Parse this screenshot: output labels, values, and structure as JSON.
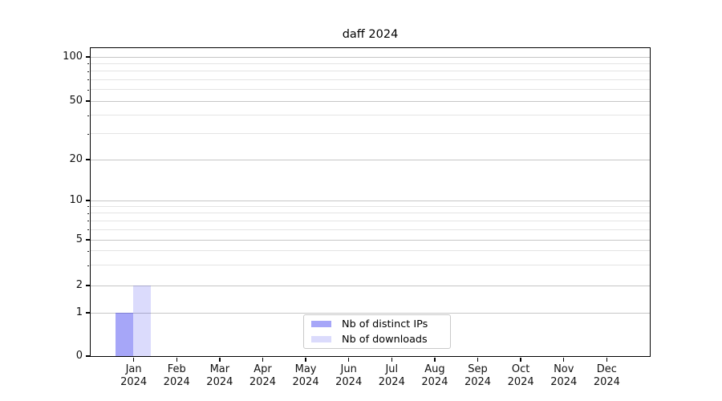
{
  "chart_data": {
    "type": "bar",
    "title": "daff 2024",
    "categories": [
      "Jan",
      "Feb",
      "Mar",
      "Apr",
      "May",
      "Jun",
      "Jul",
      "Aug",
      "Sep",
      "Oct",
      "Nov",
      "Dec"
    ],
    "year": "2024",
    "series": [
      {
        "name": "Nb of distinct IPs",
        "color": "rgba(0,0,235,0.35)",
        "values": [
          1,
          0,
          0,
          0,
          0,
          0,
          0,
          0,
          0,
          0,
          0,
          0
        ]
      },
      {
        "name": "Nb of downloads",
        "color": "rgba(0,0,235,0.14)",
        "values": [
          2,
          0,
          0,
          0,
          0,
          0,
          0,
          0,
          0,
          0,
          0,
          0
        ]
      }
    ],
    "y_ticks": [
      0,
      1,
      2,
      5,
      10,
      20,
      50,
      100
    ],
    "y_minor_ticks": [
      3,
      4,
      6,
      7,
      8,
      9,
      30,
      40,
      60,
      70,
      80,
      90
    ],
    "y_scale": "symlog",
    "ylim": [
      0,
      100
    ],
    "xlabel": "",
    "ylabel": "",
    "grid": true,
    "legend_position": "lower center"
  },
  "colors": {
    "grid_major": "#c6c6c6",
    "grid_minor": "#e4e4e4",
    "axis": "#000000",
    "legend_border": "#c9c9c9",
    "bar_distinct_ips": "rgba(0,0,235,0.35)",
    "bar_downloads": "rgba(0,0,235,0.14)"
  }
}
